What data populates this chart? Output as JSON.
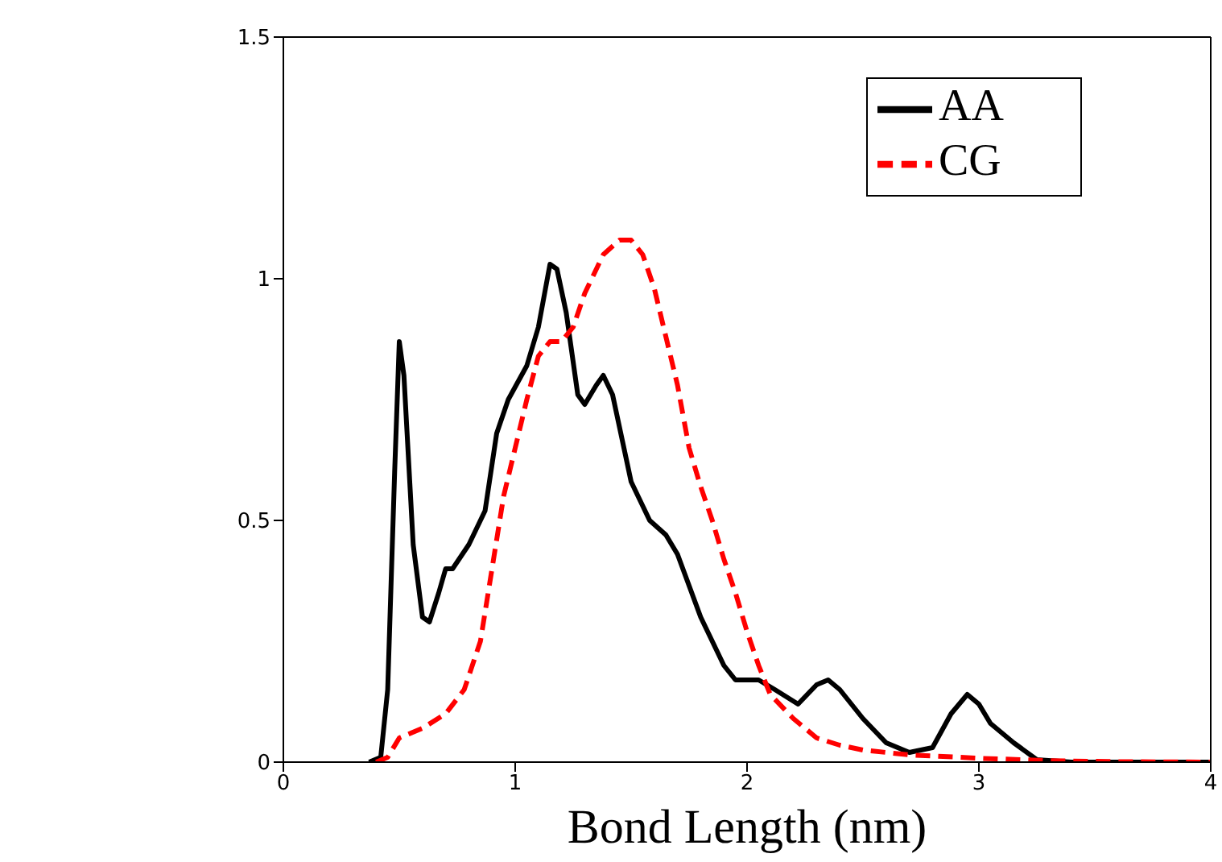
{
  "chart_data": {
    "type": "line",
    "xlabel": "Bond Length (nm)",
    "xlim": [
      0,
      4
    ],
    "xticks": [
      0,
      1,
      2,
      3,
      4
    ],
    "ylim": [
      0,
      1.5
    ],
    "yticks": [
      0,
      0.5,
      1,
      1.5
    ],
    "legend": "top right",
    "marker": "none",
    "series": [
      {
        "name": "AA",
        "color": "#000000",
        "line_style": "solid",
        "x": [
          0.37,
          0.42,
          0.45,
          0.48,
          0.5,
          0.52,
          0.56,
          0.6,
          0.63,
          0.67,
          0.7,
          0.73,
          0.8,
          0.87,
          0.92,
          0.97,
          1.05,
          1.1,
          1.15,
          1.18,
          1.22,
          1.27,
          1.3,
          1.35,
          1.38,
          1.42,
          1.5,
          1.58,
          1.65,
          1.7,
          1.8,
          1.9,
          1.95,
          2.05,
          2.12,
          2.22,
          2.3,
          2.35,
          2.4,
          2.5,
          2.6,
          2.7,
          2.8,
          2.88,
          2.95,
          3.0,
          3.05,
          3.15,
          3.25,
          3.4,
          4.0
        ],
        "values": [
          0,
          0.01,
          0.15,
          0.6,
          0.87,
          0.8,
          0.45,
          0.3,
          0.29,
          0.35,
          0.4,
          0.4,
          0.45,
          0.52,
          0.68,
          0.75,
          0.82,
          0.9,
          1.03,
          1.02,
          0.93,
          0.76,
          0.74,
          0.78,
          0.8,
          0.76,
          0.58,
          0.5,
          0.47,
          0.43,
          0.3,
          0.2,
          0.17,
          0.17,
          0.15,
          0.12,
          0.16,
          0.17,
          0.15,
          0.09,
          0.04,
          0.02,
          0.03,
          0.1,
          0.14,
          0.12,
          0.08,
          0.04,
          0.005,
          0,
          0
        ]
      },
      {
        "name": "CG",
        "color": "#ff0000",
        "line_style": "dashed",
        "x": [
          0.4,
          0.45,
          0.5,
          0.6,
          0.7,
          0.78,
          0.85,
          0.9,
          0.95,
          1.0,
          1.05,
          1.1,
          1.15,
          1.2,
          1.25,
          1.3,
          1.38,
          1.45,
          1.5,
          1.55,
          1.6,
          1.65,
          1.7,
          1.75,
          1.8,
          1.85,
          1.9,
          1.95,
          2.0,
          2.05,
          2.1,
          2.2,
          2.3,
          2.4,
          2.5,
          2.7,
          3.0,
          3.3,
          3.6,
          4.0
        ],
        "values": [
          0,
          0.01,
          0.05,
          0.07,
          0.1,
          0.15,
          0.25,
          0.4,
          0.55,
          0.65,
          0.75,
          0.84,
          0.87,
          0.87,
          0.9,
          0.97,
          1.05,
          1.08,
          1.08,
          1.05,
          0.98,
          0.88,
          0.78,
          0.65,
          0.57,
          0.5,
          0.42,
          0.35,
          0.27,
          0.2,
          0.14,
          0.09,
          0.05,
          0.035,
          0.025,
          0.015,
          0.008,
          0.003,
          0.001,
          0
        ]
      }
    ]
  }
}
